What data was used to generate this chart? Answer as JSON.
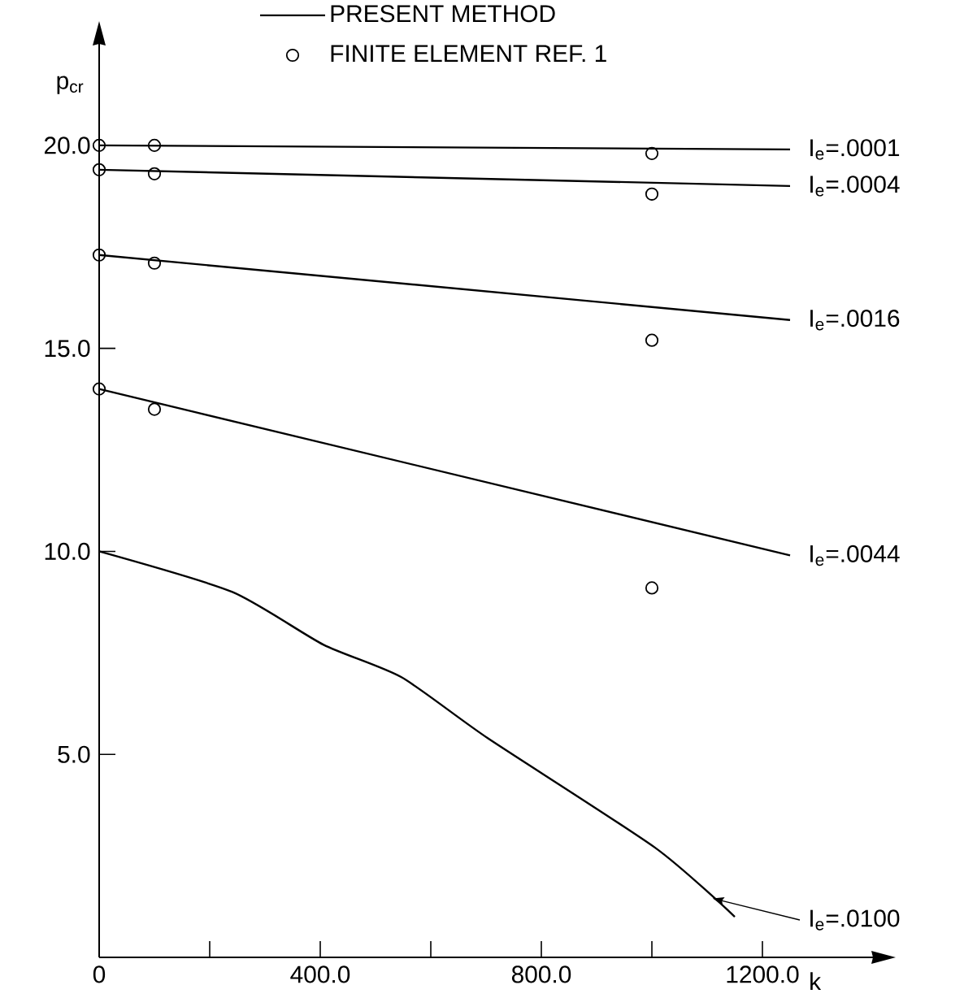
{
  "chart_data": {
    "type": "line",
    "xlabel": "k",
    "ylabel": "p$_{cr}$",
    "legend": "top",
    "legend_title": "PRESENT METHOD",
    "xlim": [
      0,
      1400
    ],
    "ylim": [
      0,
      22.5
    ],
    "xticks": [
      {
        "value": 0,
        "label": "0"
      },
      {
        "value": 200,
        "label": null
      },
      {
        "value": 400,
        "label": "400.0"
      },
      {
        "value": 600,
        "label": null
      },
      {
        "value": 800,
        "label": "800.0"
      },
      {
        "value": 1000,
        "label": null
      },
      {
        "value": 1200,
        "label": "1200.0"
      }
    ],
    "yticks": [
      {
        "value": 5,
        "label": "5.0"
      },
      {
        "value": 10,
        "label": "10.0"
      },
      {
        "value": 15,
        "label": "15.0"
      },
      {
        "value": 20,
        "label": "20.0"
      }
    ],
    "series": [
      {
        "name": "I$_{e}$=.0001",
        "color": "#000000",
        "x": [
          0,
          1250
        ],
        "values": [
          20.0,
          19.9
        ]
      },
      {
        "name": "I$_{e}$=.0004",
        "color": "#000000",
        "x": [
          0,
          1250
        ],
        "values": [
          19.4,
          19.0
        ]
      },
      {
        "name": "I$_{e}$=.0016",
        "color": "#000000",
        "x": [
          0,
          1250
        ],
        "values": [
          17.3,
          15.7
        ]
      },
      {
        "name": "I$_{e}$=.0044",
        "color": "#000000",
        "x": [
          0,
          1250
        ],
        "values": [
          14.0,
          9.9
        ]
      },
      {
        "name": "I$_{e}$=.0100",
        "color": "#000000",
        "x": [
          0,
          241,
          406,
          547,
          703,
          1006,
          1150
        ],
        "values": [
          10.0,
          9.0,
          7.7,
          6.9,
          5.4,
          2.7,
          1.0
        ]
      },
      {
        "name": "FINITE ELEMENT REF. 1",
        "type": "scatter",
        "marker": "circle",
        "color": "#000000",
        "x": [
          0,
          0,
          0,
          0,
          100,
          100,
          100,
          100,
          1000,
          1000,
          1000,
          1000
        ],
        "values": [
          20.0,
          19.4,
          17.3,
          14.0,
          20.0,
          19.3,
          17.1,
          13.5,
          19.8,
          18.8,
          15.2,
          9.1
        ]
      }
    ]
  }
}
